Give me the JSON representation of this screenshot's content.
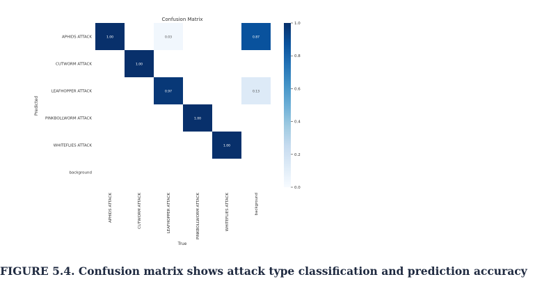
{
  "chart_data": {
    "type": "heatmap",
    "title": "Confusion Matrix",
    "xlabel": "True",
    "ylabel": "Predicted",
    "rows": [
      "APHIDS ATTACK",
      "CUTWORM ATTACK",
      "LEAFHOPPER ATTACK",
      "PINKBOLLWORM ATTACK",
      "WHITEFLIES ATTACK",
      "background"
    ],
    "columns": [
      "APHIDS ATTACK",
      "CUTWORM ATTACK",
      "LEAFHOPPER ATTACK",
      "PINKBOLLWORM ATTACK",
      "WHITEFLIES ATTACK",
      "background"
    ],
    "matrix": [
      [
        1.0,
        null,
        0.03,
        null,
        null,
        0.87
      ],
      [
        null,
        1.0,
        null,
        null,
        null,
        null
      ],
      [
        null,
        null,
        0.97,
        null,
        null,
        0.13
      ],
      [
        null,
        null,
        null,
        1.0,
        null,
        null
      ],
      [
        null,
        null,
        null,
        null,
        1.0,
        null
      ],
      [
        null,
        null,
        null,
        null,
        null,
        null
      ]
    ],
    "cell_labels": [
      [
        "1.00",
        "",
        "0.03",
        "",
        "",
        "0.87"
      ],
      [
        "",
        "1.00",
        "",
        "",
        "",
        ""
      ],
      [
        "",
        "",
        "0.97",
        "",
        "",
        "0.13"
      ],
      [
        "",
        "",
        "",
        "1.00",
        "",
        ""
      ],
      [
        "",
        "",
        "",
        "",
        "1.00",
        ""
      ],
      [
        "",
        "",
        "",
        "",
        "",
        ""
      ]
    ],
    "colorbar": {
      "colormap": "Blues",
      "range": [
        0.0,
        1.0
      ],
      "ticks": [
        "0.0",
        "0.2",
        "0.4",
        "0.6",
        "0.8",
        "1.0"
      ],
      "low_color": "#f7fbff",
      "high_color": "#08306b"
    }
  },
  "caption": "FIGURE 5.4. Confusion matrix shows attack type classification and prediction accuracy"
}
